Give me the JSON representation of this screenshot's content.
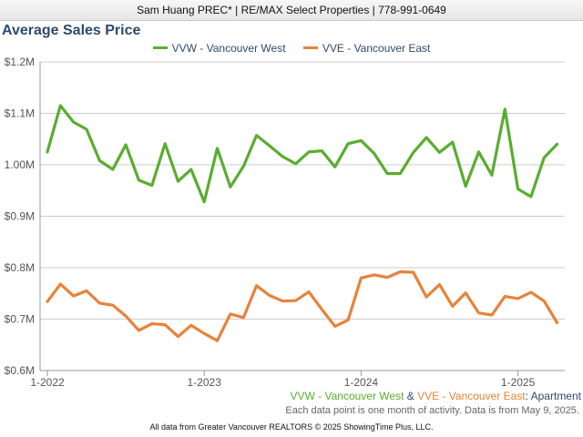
{
  "header": {
    "text": "Sam Huang PREC* | RE/MAX Select Properties | 778-991-0649"
  },
  "colors": {
    "west": "#5aad2f",
    "east": "#e8823a",
    "title": "#2e4a6b"
  },
  "chart_data": {
    "type": "line",
    "title": "Average Sales Price",
    "xlabel": "",
    "ylabel": "",
    "ylim": [
      600000,
      1200000
    ],
    "y_ticks": [
      {
        "value": 1200000,
        "label": "$1.2M"
      },
      {
        "value": 1100000,
        "label": "$1.1M"
      },
      {
        "value": 1000000,
        "label": "1.00M"
      },
      {
        "value": 900000,
        "label": "$0.9M"
      },
      {
        "value": 800000,
        "label": "$0.8M"
      },
      {
        "value": 700000,
        "label": "$0.7M"
      },
      {
        "value": 600000,
        "label": "$0.6M"
      }
    ],
    "x_ticks": [
      {
        "value": "2022-01",
        "label": "1-2022"
      },
      {
        "value": "2023-01",
        "label": "1-2023"
      },
      {
        "value": "2024-01",
        "label": "1-2024"
      },
      {
        "value": "2025-01",
        "label": "1-2025"
      }
    ],
    "x": [
      "2022-01",
      "2022-02",
      "2022-03",
      "2022-04",
      "2022-05",
      "2022-06",
      "2022-07",
      "2022-08",
      "2022-09",
      "2022-10",
      "2022-11",
      "2022-12",
      "2023-01",
      "2023-02",
      "2023-03",
      "2023-04",
      "2023-05",
      "2023-06",
      "2023-07",
      "2023-08",
      "2023-09",
      "2023-10",
      "2023-11",
      "2023-12",
      "2024-01",
      "2024-02",
      "2024-03",
      "2024-04",
      "2024-05",
      "2024-06",
      "2024-07",
      "2024-08",
      "2024-09",
      "2024-10",
      "2024-11",
      "2024-12",
      "2025-01",
      "2025-02",
      "2025-03",
      "2025-04"
    ],
    "legend_position": "top",
    "grid": true,
    "series": [
      {
        "name": "VVW - Vancouver West",
        "color": "#5aad2f",
        "values": [
          1025000,
          1115000,
          1083000,
          1069000,
          1008000,
          991000,
          1039000,
          970000,
          960000,
          1041000,
          968000,
          991000,
          928000,
          1032000,
          957000,
          997000,
          1057000,
          1037000,
          1016000,
          1002000,
          1025000,
          1027000,
          996000,
          1041000,
          1047000,
          1022000,
          983000,
          983000,
          1024000,
          1053000,
          1024000,
          1044000,
          958000,
          1025000,
          980000,
          1108000,
          953000,
          938000,
          1014000,
          1040000
        ]
      },
      {
        "name": "VVE - Vancouver East",
        "color": "#e8823a",
        "values": [
          734000,
          768000,
          745000,
          755000,
          731000,
          727000,
          706000,
          678000,
          691000,
          689000,
          666000,
          688000,
          672000,
          658000,
          710000,
          703000,
          765000,
          746000,
          735000,
          736000,
          753000,
          719000,
          686000,
          698000,
          780000,
          786000,
          781000,
          792000,
          791000,
          743000,
          767000,
          725000,
          751000,
          712000,
          708000,
          744000,
          740000,
          752000,
          735000,
          693000
        ]
      }
    ],
    "footer_legend": {
      "west": "VVW - Vancouver West",
      "amp": "&",
      "east": "VVE - Vancouver East",
      "type": ": Apartment"
    },
    "note": "Each data point is one month of activity. Data is from May 9, 2025."
  },
  "credit": "All data from Greater Vancouver REALTORS © 2025 ShowingTime Plus, LLC."
}
